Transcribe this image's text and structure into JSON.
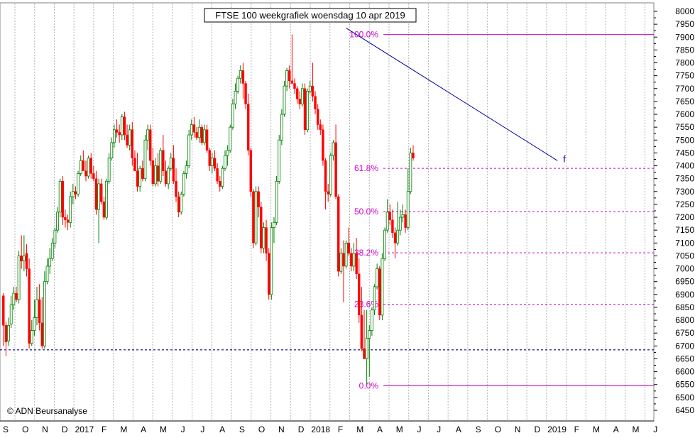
{
  "chart_data": {
    "type": "candlestick",
    "title": "FTSE 100 weekgrafiek woensdag 10 apr 2019",
    "copyright": "© ADN Beursanalyse",
    "ylim": [
      6450,
      8000
    ],
    "y_ticks": [
      6450,
      6500,
      6550,
      6600,
      6650,
      6700,
      6750,
      6800,
      6850,
      6900,
      6950,
      7000,
      7050,
      7100,
      7150,
      7200,
      7250,
      7300,
      7350,
      7400,
      7450,
      7500,
      7550,
      7600,
      7650,
      7700,
      7750,
      7800,
      7850,
      7900,
      7950,
      8000
    ],
    "x_labels": [
      "S",
      "O",
      "N",
      "D",
      "2017",
      "F",
      "M",
      "A",
      "M",
      "J",
      "J",
      "A",
      "S",
      "O",
      "N",
      "D",
      "2018",
      "F",
      "M",
      "A",
      "M",
      "J",
      "J",
      "A",
      "S",
      "O",
      "N",
      "D",
      "2019",
      "F",
      "M",
      "A",
      "M",
      "J"
    ],
    "grid": true,
    "colors": {
      "up": "#008000",
      "down": "#ff0000",
      "fib": "#cc00cc",
      "trend": "#0000a0",
      "support": "#000080",
      "grid": "#b4b4b4"
    },
    "fibonacci": [
      {
        "label": "100.0%",
        "value": 7910
      },
      {
        "label": "61.8%",
        "value": 7390
      },
      {
        "label": "50.0%",
        "value": 7222
      },
      {
        "label": "38.2%",
        "value": 7062
      },
      {
        "label": "23.6%",
        "value": 6862
      },
      {
        "label": "0.0%",
        "value": 6545
      }
    ],
    "support_line": {
      "value": 6685
    },
    "trendline": {
      "label": "f",
      "from_week": 133.5,
      "from_value": 7935,
      "to_week": 215.5,
      "to_value": 7420
    },
    "candles_ohlc": [
      [
        6895,
        6905,
        6700,
        6780
      ],
      [
        6780,
        6795,
        6660,
        6715
      ],
      [
        6720,
        6810,
        6700,
        6780
      ],
      [
        6785,
        6895,
        6770,
        6860
      ],
      [
        6860,
        6930,
        6840,
        6905
      ],
      [
        6905,
        6930,
        6870,
        6880
      ],
      [
        6880,
        7070,
        6865,
        7050
      ],
      [
        7050,
        7130,
        7000,
        7030
      ],
      [
        7030,
        7130,
        6990,
        7050
      ],
      [
        7060,
        7095,
        6970,
        7000
      ],
      [
        7000,
        7040,
        6690,
        6710
      ],
      [
        6710,
        6800,
        6700,
        6760
      ],
      [
        6760,
        6880,
        6740,
        6810
      ],
      [
        6810,
        6930,
        6780,
        6880
      ],
      [
        6880,
        6940,
        6760,
        6790
      ],
      [
        6790,
        6890,
        6690,
        6700
      ],
      [
        6700,
        6990,
        6690,
        6950
      ],
      [
        6950,
        7040,
        6940,
        7010
      ],
      [
        7010,
        7080,
        6980,
        7040
      ],
      [
        7040,
        7120,
        7030,
        7100
      ],
      [
        7100,
        7160,
        7080,
        7150
      ],
      [
        7150,
        7240,
        7140,
        7220
      ],
      [
        7220,
        7350,
        7200,
        7340
      ],
      [
        7340,
        7360,
        7170,
        7200
      ],
      [
        7200,
        7230,
        7160,
        7190
      ],
      [
        7190,
        7210,
        7150,
        7180
      ],
      [
        7180,
        7300,
        7160,
        7280
      ],
      [
        7280,
        7330,
        7250,
        7300
      ],
      [
        7300,
        7320,
        7270,
        7290
      ],
      [
        7290,
        7380,
        7280,
        7370
      ],
      [
        7370,
        7440,
        7360,
        7420
      ],
      [
        7420,
        7460,
        7380,
        7380
      ],
      [
        7380,
        7420,
        7340,
        7360
      ],
      [
        7360,
        7440,
        7350,
        7430
      ],
      [
        7430,
        7450,
        7350,
        7370
      ],
      [
        7370,
        7400,
        7340,
        7350
      ],
      [
        7350,
        7380,
        7210,
        7230
      ],
      [
        7230,
        7350,
        7100,
        7330
      ],
      [
        7330,
        7350,
        7250,
        7260
      ],
      [
        7260,
        7280,
        7190,
        7200
      ],
      [
        7200,
        7350,
        7190,
        7340
      ],
      [
        7340,
        7450,
        7330,
        7430
      ],
      [
        7430,
        7510,
        7420,
        7490
      ],
      [
        7490,
        7560,
        7470,
        7540
      ],
      [
        7540,
        7580,
        7510,
        7530
      ],
      [
        7530,
        7560,
        7490,
        7520
      ],
      [
        7520,
        7600,
        7500,
        7590
      ],
      [
        7590,
        7610,
        7500,
        7520
      ],
      [
        7520,
        7560,
        7470,
        7480
      ],
      [
        7480,
        7560,
        7460,
        7540
      ],
      [
        7540,
        7570,
        7400,
        7430
      ],
      [
        7430,
        7460,
        7380,
        7380
      ],
      [
        7380,
        7450,
        7300,
        7320
      ],
      [
        7320,
        7400,
        7300,
        7390
      ],
      [
        7390,
        7420,
        7340,
        7350
      ],
      [
        7350,
        7520,
        7340,
        7500
      ],
      [
        7500,
        7560,
        7460,
        7540
      ],
      [
        7540,
        7560,
        7400,
        7420
      ],
      [
        7420,
        7470,
        7320,
        7330
      ],
      [
        7330,
        7430,
        7320,
        7400
      ],
      [
        7400,
        7450,
        7320,
        7340
      ],
      [
        7340,
        7470,
        7330,
        7460
      ],
      [
        7460,
        7520,
        7360,
        7380
      ],
      [
        7380,
        7420,
        7320,
        7330
      ],
      [
        7330,
        7400,
        7310,
        7390
      ],
      [
        7390,
        7450,
        7380,
        7430
      ],
      [
        7430,
        7480,
        7330,
        7340
      ],
      [
        7340,
        7390,
        7260,
        7280
      ],
      [
        7280,
        7300,
        7200,
        7220
      ],
      [
        7220,
        7300,
        7210,
        7290
      ],
      [
        7290,
        7380,
        7280,
        7370
      ],
      [
        7370,
        7420,
        7350,
        7400
      ],
      [
        7400,
        7540,
        7390,
        7520
      ],
      [
        7520,
        7580,
        7500,
        7560
      ],
      [
        7560,
        7590,
        7510,
        7530
      ],
      [
        7530,
        7550,
        7500,
        7510
      ],
      [
        7510,
        7580,
        7490,
        7550
      ],
      [
        7550,
        7560,
        7480,
        7490
      ],
      [
        7490,
        7560,
        7480,
        7540
      ],
      [
        7540,
        7560,
        7450,
        7460
      ],
      [
        7460,
        7470,
        7380,
        7400
      ],
      [
        7400,
        7450,
        7370,
        7430
      ],
      [
        7430,
        7460,
        7380,
        7390
      ],
      [
        7390,
        7410,
        7330,
        7340
      ],
      [
        7340,
        7360,
        7300,
        7320
      ],
      [
        7320,
        7400,
        7310,
        7390
      ],
      [
        7390,
        7460,
        7380,
        7440
      ],
      [
        7440,
        7480,
        7400,
        7460
      ],
      [
        7460,
        7560,
        7450,
        7550
      ],
      [
        7550,
        7660,
        7540,
        7640
      ],
      [
        7640,
        7720,
        7620,
        7690
      ],
      [
        7690,
        7750,
        7680,
        7740
      ],
      [
        7740,
        7790,
        7720,
        7770
      ],
      [
        7770,
        7800,
        7660,
        7720
      ],
      [
        7720,
        7730,
        7620,
        7640
      ],
      [
        7640,
        7680,
        7440,
        7460
      ],
      [
        7460,
        7470,
        7280,
        7300
      ],
      [
        7300,
        7310,
        7080,
        7100
      ],
      [
        7100,
        7320,
        7090,
        7300
      ],
      [
        7300,
        7320,
        7200,
        7240
      ],
      [
        7240,
        7260,
        7060,
        7080
      ],
      [
        7080,
        7180,
        7060,
        7160
      ],
      [
        7160,
        7190,
        7030,
        7060
      ],
      [
        7060,
        7080,
        6880,
        6900
      ],
      [
        6900,
        7180,
        6880,
        7160
      ],
      [
        7160,
        7200,
        7100,
        7180
      ],
      [
        7180,
        7360,
        7170,
        7340
      ],
      [
        7340,
        7520,
        7330,
        7500
      ],
      [
        7500,
        7620,
        7480,
        7600
      ],
      [
        7600,
        7730,
        7590,
        7710
      ],
      [
        7710,
        7780,
        7690,
        7770
      ],
      [
        7770,
        7790,
        7700,
        7730
      ],
      [
        7730,
        7910,
        7720,
        7720
      ],
      [
        7720,
        7740,
        7680,
        7700
      ],
      [
        7700,
        7710,
        7640,
        7660
      ],
      [
        7660,
        7690,
        7620,
        7640
      ],
      [
        7640,
        7720,
        7630,
        7700
      ],
      [
        7700,
        7720,
        7520,
        7540
      ],
      [
        7540,
        7700,
        7530,
        7690
      ],
      [
        7690,
        7730,
        7680,
        7710
      ],
      [
        7710,
        7800,
        7650,
        7670
      ],
      [
        7670,
        7690,
        7600,
        7620
      ],
      [
        7620,
        7640,
        7540,
        7560
      ],
      [
        7560,
        7580,
        7520,
        7540
      ],
      [
        7540,
        7560,
        7400,
        7420
      ],
      [
        7420,
        7430,
        7230,
        7300
      ],
      [
        7300,
        7330,
        7260,
        7290
      ],
      [
        7290,
        7450,
        7280,
        7440
      ],
      [
        7440,
        7500,
        7420,
        7490
      ],
      [
        7490,
        7560,
        7270,
        7280
      ],
      [
        7280,
        7290,
        6970,
        6990
      ],
      [
        6990,
        7080,
        6980,
        7060
      ],
      [
        7060,
        7110,
        6870,
        7010
      ],
      [
        7010,
        7110,
        7000,
        7100
      ],
      [
        7100,
        7160,
        7050,
        7060
      ],
      [
        7060,
        7080,
        6990,
        7010
      ],
      [
        7010,
        7100,
        6990,
        7060
      ],
      [
        7060,
        7120,
        6960,
        6980
      ],
      [
        6980,
        7040,
        6790,
        6820
      ],
      [
        6820,
        6930,
        6680,
        6690
      ],
      [
        6690,
        6840,
        6660,
        6650
      ],
      [
        6650,
        6840,
        6550,
        6730
      ],
      [
        6730,
        6780,
        6580,
        6760
      ],
      [
        6760,
        6850,
        6740,
        6840
      ],
      [
        6840,
        6940,
        6820,
        6930
      ],
      [
        6930,
        7020,
        6920,
        7000
      ],
      [
        7000,
        7010,
        6800,
        6820
      ],
      [
        6820,
        7060,
        6800,
        7040
      ],
      [
        7040,
        7160,
        7030,
        7150
      ],
      [
        7150,
        7270,
        7140,
        7220
      ],
      [
        7220,
        7250,
        7170,
        7190
      ],
      [
        7190,
        7230,
        7120,
        7140
      ],
      [
        7140,
        7160,
        7040,
        7100
      ],
      [
        7100,
        7260,
        7090,
        7150
      ],
      [
        7150,
        7230,
        7130,
        7200
      ],
      [
        7200,
        7250,
        7180,
        7210
      ],
      [
        7210,
        7230,
        7140,
        7160
      ],
      [
        7160,
        7390,
        7150,
        7300
      ],
      [
        7300,
        7470,
        7290,
        7450
      ],
      [
        7450,
        7480,
        7420,
        7430
      ]
    ]
  }
}
